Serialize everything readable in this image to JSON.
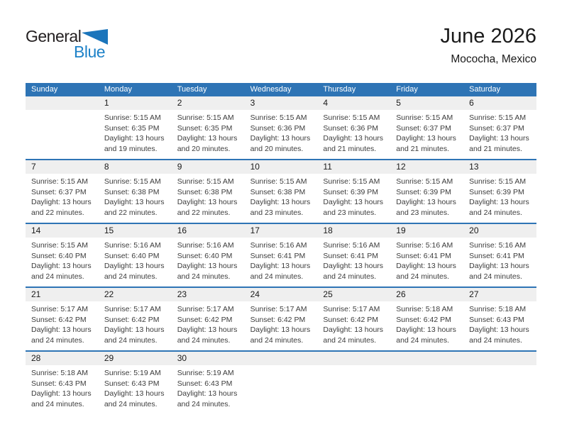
{
  "logo": {
    "line1": "General",
    "line2": "Blue"
  },
  "header": {
    "month_title": "June 2026",
    "location": "Mococha, Mexico"
  },
  "weekday_labels": [
    "Sunday",
    "Monday",
    "Tuesday",
    "Wednesday",
    "Thursday",
    "Friday",
    "Saturday"
  ],
  "colors": {
    "header_blue": "#2E74B5",
    "border_blue": "#2E74B5",
    "band_gray": "#EFEFEF",
    "logo_blue": "#1E82C8",
    "logo_black": "#231F20"
  },
  "weeks": [
    [
      {
        "day": ""
      },
      {
        "day": "1",
        "sunrise": "Sunrise: 5:15 AM",
        "sunset": "Sunset: 6:35 PM",
        "daylight": "Daylight: 13 hours and 19 minutes."
      },
      {
        "day": "2",
        "sunrise": "Sunrise: 5:15 AM",
        "sunset": "Sunset: 6:35 PM",
        "daylight": "Daylight: 13 hours and 20 minutes."
      },
      {
        "day": "3",
        "sunrise": "Sunrise: 5:15 AM",
        "sunset": "Sunset: 6:36 PM",
        "daylight": "Daylight: 13 hours and 20 minutes."
      },
      {
        "day": "4",
        "sunrise": "Sunrise: 5:15 AM",
        "sunset": "Sunset: 6:36 PM",
        "daylight": "Daylight: 13 hours and 21 minutes."
      },
      {
        "day": "5",
        "sunrise": "Sunrise: 5:15 AM",
        "sunset": "Sunset: 6:37 PM",
        "daylight": "Daylight: 13 hours and 21 minutes."
      },
      {
        "day": "6",
        "sunrise": "Sunrise: 5:15 AM",
        "sunset": "Sunset: 6:37 PM",
        "daylight": "Daylight: 13 hours and 21 minutes."
      }
    ],
    [
      {
        "day": "7",
        "sunrise": "Sunrise: 5:15 AM",
        "sunset": "Sunset: 6:37 PM",
        "daylight": "Daylight: 13 hours and 22 minutes."
      },
      {
        "day": "8",
        "sunrise": "Sunrise: 5:15 AM",
        "sunset": "Sunset: 6:38 PM",
        "daylight": "Daylight: 13 hours and 22 minutes."
      },
      {
        "day": "9",
        "sunrise": "Sunrise: 5:15 AM",
        "sunset": "Sunset: 6:38 PM",
        "daylight": "Daylight: 13 hours and 22 minutes."
      },
      {
        "day": "10",
        "sunrise": "Sunrise: 5:15 AM",
        "sunset": "Sunset: 6:38 PM",
        "daylight": "Daylight: 13 hours and 23 minutes."
      },
      {
        "day": "11",
        "sunrise": "Sunrise: 5:15 AM",
        "sunset": "Sunset: 6:39 PM",
        "daylight": "Daylight: 13 hours and 23 minutes."
      },
      {
        "day": "12",
        "sunrise": "Sunrise: 5:15 AM",
        "sunset": "Sunset: 6:39 PM",
        "daylight": "Daylight: 13 hours and 23 minutes."
      },
      {
        "day": "13",
        "sunrise": "Sunrise: 5:15 AM",
        "sunset": "Sunset: 6:39 PM",
        "daylight": "Daylight: 13 hours and 24 minutes."
      }
    ],
    [
      {
        "day": "14",
        "sunrise": "Sunrise: 5:15 AM",
        "sunset": "Sunset: 6:40 PM",
        "daylight": "Daylight: 13 hours and 24 minutes."
      },
      {
        "day": "15",
        "sunrise": "Sunrise: 5:16 AM",
        "sunset": "Sunset: 6:40 PM",
        "daylight": "Daylight: 13 hours and 24 minutes."
      },
      {
        "day": "16",
        "sunrise": "Sunrise: 5:16 AM",
        "sunset": "Sunset: 6:40 PM",
        "daylight": "Daylight: 13 hours and 24 minutes."
      },
      {
        "day": "17",
        "sunrise": "Sunrise: 5:16 AM",
        "sunset": "Sunset: 6:41 PM",
        "daylight": "Daylight: 13 hours and 24 minutes."
      },
      {
        "day": "18",
        "sunrise": "Sunrise: 5:16 AM",
        "sunset": "Sunset: 6:41 PM",
        "daylight": "Daylight: 13 hours and 24 minutes."
      },
      {
        "day": "19",
        "sunrise": "Sunrise: 5:16 AM",
        "sunset": "Sunset: 6:41 PM",
        "daylight": "Daylight: 13 hours and 24 minutes."
      },
      {
        "day": "20",
        "sunrise": "Sunrise: 5:16 AM",
        "sunset": "Sunset: 6:41 PM",
        "daylight": "Daylight: 13 hours and 24 minutes."
      }
    ],
    [
      {
        "day": "21",
        "sunrise": "Sunrise: 5:17 AM",
        "sunset": "Sunset: 6:42 PM",
        "daylight": "Daylight: 13 hours and 24 minutes."
      },
      {
        "day": "22",
        "sunrise": "Sunrise: 5:17 AM",
        "sunset": "Sunset: 6:42 PM",
        "daylight": "Daylight: 13 hours and 24 minutes."
      },
      {
        "day": "23",
        "sunrise": "Sunrise: 5:17 AM",
        "sunset": "Sunset: 6:42 PM",
        "daylight": "Daylight: 13 hours and 24 minutes."
      },
      {
        "day": "24",
        "sunrise": "Sunrise: 5:17 AM",
        "sunset": "Sunset: 6:42 PM",
        "daylight": "Daylight: 13 hours and 24 minutes."
      },
      {
        "day": "25",
        "sunrise": "Sunrise: 5:17 AM",
        "sunset": "Sunset: 6:42 PM",
        "daylight": "Daylight: 13 hours and 24 minutes."
      },
      {
        "day": "26",
        "sunrise": "Sunrise: 5:18 AM",
        "sunset": "Sunset: 6:42 PM",
        "daylight": "Daylight: 13 hours and 24 minutes."
      },
      {
        "day": "27",
        "sunrise": "Sunrise: 5:18 AM",
        "sunset": "Sunset: 6:43 PM",
        "daylight": "Daylight: 13 hours and 24 minutes."
      }
    ],
    [
      {
        "day": "28",
        "sunrise": "Sunrise: 5:18 AM",
        "sunset": "Sunset: 6:43 PM",
        "daylight": "Daylight: 13 hours and 24 minutes."
      },
      {
        "day": "29",
        "sunrise": "Sunrise: 5:19 AM",
        "sunset": "Sunset: 6:43 PM",
        "daylight": "Daylight: 13 hours and 24 minutes."
      },
      {
        "day": "30",
        "sunrise": "Sunrise: 5:19 AM",
        "sunset": "Sunset: 6:43 PM",
        "daylight": "Daylight: 13 hours and 24 minutes."
      },
      {
        "day": ""
      },
      {
        "day": ""
      },
      {
        "day": ""
      },
      {
        "day": ""
      }
    ]
  ]
}
